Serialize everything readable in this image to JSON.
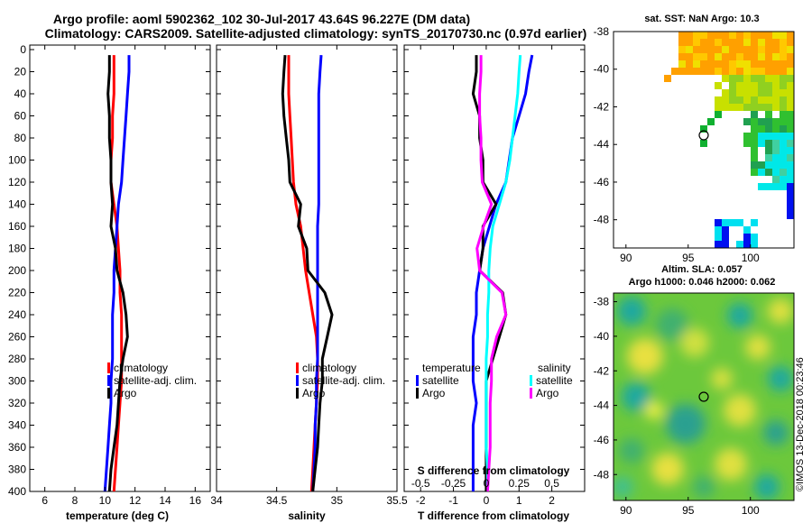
{
  "title": {
    "line1": "Argo profile: aoml 5902362_102 30-Jul-2017 43.64S 96.227E (DM data)",
    "line2": "Climatology: CARS2009. Satellite-adjusted climatology: synTS_20170730.nc (0.97d earlier)"
  },
  "colors": {
    "climatology": "#ff0000",
    "satellite": "#0000ff",
    "argo": "#000000",
    "magenta": "#ff00ff",
    "cyan": "#00ffff"
  },
  "depth_ticks": [
    "0",
    "20",
    "40",
    "60",
    "80",
    "100",
    "120",
    "140",
    "160",
    "180",
    "200",
    "220",
    "240",
    "260",
    "280",
    "300",
    "320",
    "340",
    "360",
    "380",
    "400"
  ],
  "chart_data": [
    {
      "type": "line",
      "id": "temperature",
      "xlabel": "temperature (deg C)",
      "ylabel": "depth",
      "xlim": [
        5,
        17
      ],
      "ylim": [
        400,
        0
      ],
      "xticks": [
        "6",
        "8",
        "10",
        "12",
        "14",
        "16"
      ],
      "legend": [
        "climatology",
        "satellite-adj. clim.",
        "Argo"
      ],
      "series": [
        {
          "name": "climatology",
          "color": "#ff0000",
          "x": [
            10.6,
            10.6,
            10.6,
            10.5,
            10.5,
            10.4,
            10.4,
            10.6,
            10.8,
            10.9,
            11.0,
            11.0,
            11.1,
            11.1,
            11.1,
            11.1,
            11.0,
            10.9,
            10.8,
            10.7,
            10.6
          ],
          "y": [
            5,
            20,
            40,
            60,
            80,
            100,
            120,
            140,
            160,
            180,
            200,
            220,
            240,
            260,
            280,
            300,
            320,
            340,
            360,
            380,
            400
          ]
        },
        {
          "name": "satellite-adj. clim.",
          "color": "#0000ff",
          "x": [
            11.6,
            11.6,
            11.5,
            11.4,
            11.3,
            11.2,
            11.1,
            10.9,
            10.8,
            10.7,
            10.6,
            10.6,
            10.5,
            10.5,
            10.5,
            10.4,
            10.4,
            10.3,
            10.2,
            10.1,
            10.0
          ],
          "y": [
            5,
            20,
            40,
            60,
            80,
            100,
            120,
            140,
            160,
            180,
            200,
            220,
            240,
            260,
            280,
            300,
            320,
            340,
            360,
            380,
            400
          ]
        },
        {
          "name": "Argo",
          "color": "#000000",
          "x": [
            10.3,
            10.3,
            10.2,
            10.3,
            10.3,
            10.4,
            10.4,
            10.5,
            10.4,
            10.7,
            10.8,
            11.2,
            11.4,
            11.5,
            11.2,
            11.0,
            10.9,
            10.8,
            10.6,
            10.4,
            10.3
          ],
          "y": [
            5,
            20,
            40,
            60,
            80,
            100,
            120,
            140,
            160,
            180,
            200,
            220,
            240,
            260,
            280,
            300,
            320,
            340,
            360,
            380,
            400
          ]
        }
      ]
    },
    {
      "type": "line",
      "id": "salinity",
      "xlabel": "salinity",
      "ylabel": "depth",
      "xlim": [
        34,
        35.5
      ],
      "ylim": [
        400,
        0
      ],
      "xticks": [
        "34",
        "34.5",
        "35",
        "35.5"
      ],
      "legend": [
        "climatology",
        "satellite-adj. clim.",
        "Argo"
      ],
      "series": [
        {
          "name": "climatology",
          "color": "#ff0000",
          "x": [
            34.6,
            34.6,
            34.6,
            34.61,
            34.62,
            34.63,
            34.64,
            34.66,
            34.7,
            34.72,
            34.74,
            34.77,
            34.8,
            34.83,
            34.84,
            34.84,
            34.83,
            34.82,
            34.81,
            34.8,
            34.79
          ],
          "y": [
            5,
            20,
            40,
            60,
            80,
            100,
            120,
            140,
            160,
            180,
            200,
            220,
            240,
            260,
            280,
            300,
            320,
            340,
            360,
            380,
            400
          ]
        },
        {
          "name": "satellite-adj. clim.",
          "color": "#0000ff",
          "x": [
            34.87,
            34.86,
            34.85,
            34.85,
            34.85,
            34.85,
            34.85,
            34.85,
            34.84,
            34.84,
            34.84,
            34.84,
            34.84,
            34.84,
            34.84,
            34.83,
            34.83,
            34.82,
            34.82,
            34.81,
            34.8
          ],
          "y": [
            5,
            20,
            40,
            60,
            80,
            100,
            120,
            140,
            160,
            180,
            200,
            220,
            240,
            260,
            280,
            300,
            320,
            340,
            360,
            380,
            400
          ]
        },
        {
          "name": "Argo",
          "color": "#000000",
          "x": [
            34.57,
            34.56,
            34.55,
            34.56,
            34.58,
            34.6,
            34.61,
            34.7,
            34.68,
            34.75,
            34.76,
            34.9,
            34.96,
            34.92,
            34.88,
            34.88,
            34.86,
            34.85,
            34.84,
            34.82,
            34.8
          ],
          "y": [
            5,
            20,
            40,
            60,
            80,
            100,
            120,
            140,
            160,
            180,
            200,
            220,
            240,
            260,
            280,
            300,
            320,
            340,
            360,
            380,
            400
          ]
        }
      ]
    },
    {
      "type": "line",
      "id": "difference",
      "xlabel": "T difference from climatology",
      "x2label": "S difference from climatology",
      "ylabel": "depth",
      "xlim": [
        -2.5,
        3
      ],
      "ylim": [
        400,
        0
      ],
      "xticks": [
        "-2",
        "-1",
        "0",
        "1",
        "2"
      ],
      "x2ticks": [
        "-0.5",
        "-0.25",
        "0",
        "0.25",
        "0.5"
      ],
      "legend_temperature_title": "temperature",
      "legend_temperature": [
        "satellite",
        "Argo"
      ],
      "legend_salinity_title": "salinity",
      "legend_salinity": [
        "satellite",
        "Argo"
      ],
      "series": [
        {
          "name": "temperature satellite",
          "color": "#0000ff",
          "x": [
            1.4,
            1.3,
            1.2,
            1.0,
            0.8,
            0.7,
            0.6,
            0.3,
            0.1,
            -0.1,
            -0.2,
            -0.3,
            -0.3,
            -0.4,
            -0.4,
            -0.4,
            -0.3,
            -0.4,
            -0.4,
            -0.4,
            -0.4
          ],
          "y": [
            5,
            20,
            40,
            60,
            80,
            100,
            120,
            140,
            160,
            180,
            200,
            220,
            240,
            260,
            280,
            300,
            320,
            340,
            360,
            380,
            400
          ]
        },
        {
          "name": "temperature Argo",
          "color": "#000000",
          "x": [
            -0.3,
            -0.3,
            -0.4,
            -0.2,
            -0.2,
            -0.1,
            -0.1,
            0.3,
            -0.1,
            -0.1,
            -0.2,
            0.5,
            0.6,
            0.4,
            0.2,
            0.0,
            0.0,
            0.0,
            0.0,
            0.0,
            0.0
          ],
          "y": [
            5,
            20,
            40,
            60,
            80,
            100,
            120,
            140,
            160,
            180,
            200,
            220,
            240,
            260,
            280,
            300,
            320,
            340,
            360,
            380,
            400
          ]
        },
        {
          "name": "salinity satellite",
          "color": "#00ffff",
          "x": [
            0.26,
            0.25,
            0.24,
            0.22,
            0.2,
            0.18,
            0.15,
            0.1,
            0.05,
            0.03,
            0.02,
            0.02,
            0.01,
            0.01,
            0.0,
            0.0,
            0.0,
            0.0,
            0.0,
            0.01,
            0.01
          ],
          "y": [
            5,
            20,
            40,
            60,
            80,
            100,
            120,
            140,
            160,
            180,
            200,
            220,
            240,
            260,
            280,
            300,
            320,
            340,
            360,
            380,
            400
          ]
        },
        {
          "name": "salinity Argo",
          "color": "#ff00ff",
          "x": [
            -0.04,
            -0.04,
            -0.05,
            -0.05,
            -0.04,
            -0.04,
            -0.03,
            0.04,
            -0.02,
            -0.07,
            -0.05,
            0.12,
            0.15,
            0.08,
            0.04,
            0.04,
            0.03,
            0.03,
            0.03,
            0.02,
            0.01
          ],
          "y": [
            5,
            20,
            40,
            60,
            80,
            100,
            120,
            140,
            160,
            180,
            200,
            220,
            240,
            260,
            280,
            300,
            320,
            340,
            360,
            380,
            400
          ]
        }
      ]
    },
    {
      "type": "heatmap",
      "id": "sst_map",
      "title": "sat. SST: NaN Argo: 10.3",
      "xlim": [
        89,
        103.5
      ],
      "ylim": [
        -49.5,
        -38
      ],
      "xticks": [
        "90",
        "95",
        "100"
      ],
      "yticks": [
        "-38",
        "-40",
        "-42",
        "-44",
        "-46",
        "-48"
      ],
      "argo_position": {
        "lon": 96.227,
        "lat": -43.64
      }
    },
    {
      "type": "heatmap",
      "id": "sla_map",
      "title": "Altim. SLA: 0.057",
      "subtitle": "Argo h1000: 0.046 h2000: 0.062",
      "xlim": [
        89,
        103.5
      ],
      "ylim": [
        -49.5,
        -37.5
      ],
      "xticks": [
        "90",
        "95",
        "100"
      ],
      "yticks": [
        "-38",
        "-40",
        "-42",
        "-44",
        "-46",
        "-48"
      ],
      "argo_position": {
        "lon": 96.227,
        "lat": -43.64
      }
    }
  ],
  "footer": "©IMOS 13-Dec-2018 00:23:46"
}
